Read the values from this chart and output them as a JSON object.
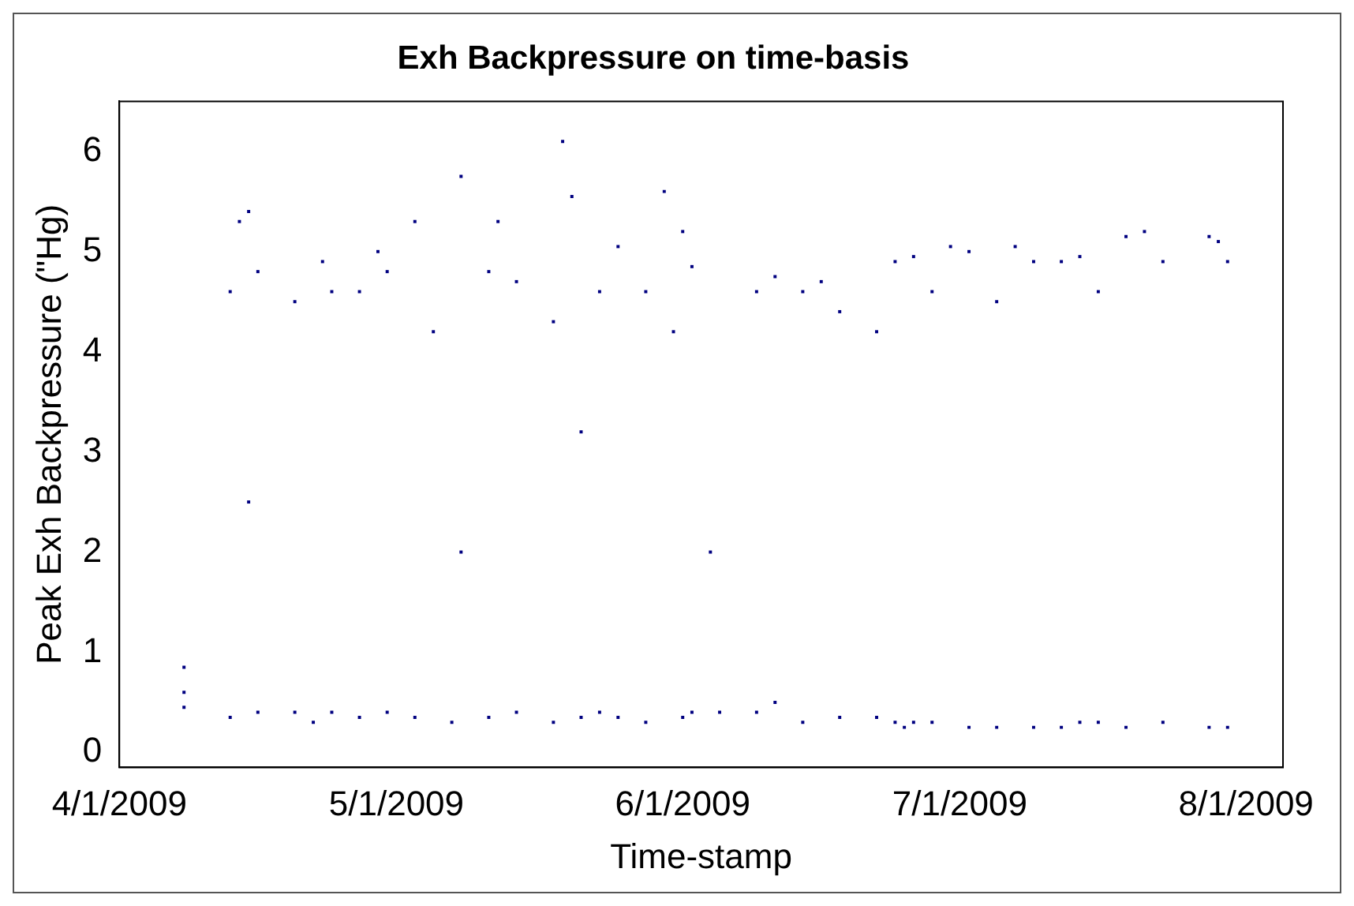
{
  "chart_data": {
    "type": "scatter",
    "title": "Exh Backpressure on time-basis",
    "xlabel": "Time-stamp",
    "ylabel": "Peak Exh Backpressure (\"Hg)",
    "marker": "square",
    "grid": false,
    "legend": false,
    "xlim": [
      "2009-04-01",
      "2009-08-05"
    ],
    "xticks": [
      {
        "value": "2009-04-01",
        "label": "4/1/2009"
      },
      {
        "value": "2009-05-01",
        "label": "5/1/2009"
      },
      {
        "value": "2009-06-01",
        "label": "6/1/2009"
      },
      {
        "value": "2009-07-01",
        "label": "7/1/2009"
      },
      {
        "value": "2009-08-01",
        "label": "8/1/2009"
      }
    ],
    "ylim": [
      -0.15,
      6.5
    ],
    "yticks": [
      0,
      1,
      2,
      3,
      4,
      5,
      6
    ],
    "series": [
      {
        "color": "#000080",
        "x": [
          "2009-04-08",
          "2009-04-08",
          "2009-04-08",
          "2009-04-13",
          "2009-04-13",
          "2009-04-14",
          "2009-04-15",
          "2009-04-15",
          "2009-04-16",
          "2009-04-16",
          "2009-04-20",
          "2009-04-20",
          "2009-04-22",
          "2009-04-23",
          "2009-04-24",
          "2009-04-24",
          "2009-04-27",
          "2009-04-27",
          "2009-04-29",
          "2009-04-30",
          "2009-04-30",
          "2009-05-03",
          "2009-05-03",
          "2009-05-05",
          "2009-05-07",
          "2009-05-08",
          "2009-05-08",
          "2009-05-11",
          "2009-05-11",
          "2009-05-12",
          "2009-05-14",
          "2009-05-14",
          "2009-05-18",
          "2009-05-18",
          "2009-05-19",
          "2009-05-20",
          "2009-05-21",
          "2009-05-21",
          "2009-05-23",
          "2009-05-23",
          "2009-05-25",
          "2009-05-25",
          "2009-05-28",
          "2009-05-28",
          "2009-05-30",
          "2009-05-31",
          "2009-06-01",
          "2009-06-01",
          "2009-06-02",
          "2009-06-02",
          "2009-06-04",
          "2009-06-05",
          "2009-06-09",
          "2009-06-09",
          "2009-06-11",
          "2009-06-11",
          "2009-06-14",
          "2009-06-14",
          "2009-06-16",
          "2009-06-18",
          "2009-06-18",
          "2009-06-22",
          "2009-06-22",
          "2009-06-24",
          "2009-06-24",
          "2009-06-25",
          "2009-06-26",
          "2009-06-26",
          "2009-06-28",
          "2009-06-28",
          "2009-06-30",
          "2009-07-02",
          "2009-07-02",
          "2009-07-05",
          "2009-07-05",
          "2009-07-07",
          "2009-07-09",
          "2009-07-09",
          "2009-07-12",
          "2009-07-12",
          "2009-07-14",
          "2009-07-14",
          "2009-07-16",
          "2009-07-16",
          "2009-07-19",
          "2009-07-19",
          "2009-07-21",
          "2009-07-23",
          "2009-07-23",
          "2009-07-28",
          "2009-07-28",
          "2009-07-29",
          "2009-07-30",
          "2009-07-30"
        ],
        "values": [
          0.6,
          0.85,
          0.45,
          0.35,
          4.6,
          5.3,
          5.4,
          2.5,
          0.4,
          4.8,
          0.4,
          4.5,
          0.3,
          4.9,
          0.4,
          4.6,
          0.35,
          4.6,
          5.0,
          0.4,
          4.8,
          0.35,
          5.3,
          4.2,
          0.3,
          5.75,
          2.0,
          0.35,
          4.8,
          5.3,
          0.4,
          4.7,
          0.3,
          4.3,
          6.1,
          5.55,
          0.35,
          3.2,
          0.4,
          4.6,
          0.35,
          5.05,
          0.3,
          4.6,
          5.6,
          4.2,
          0.35,
          5.2,
          0.4,
          4.85,
          2.0,
          0.4,
          0.4,
          4.6,
          0.5,
          4.75,
          0.3,
          4.6,
          4.7,
          0.35,
          4.4,
          0.35,
          4.2,
          0.3,
          4.9,
          0.25,
          0.3,
          4.95,
          0.3,
          4.6,
          5.05,
          0.25,
          5.0,
          0.25,
          4.5,
          5.05,
          0.25,
          4.9,
          0.25,
          4.9,
          0.3,
          4.95,
          0.3,
          4.6,
          0.25,
          5.15,
          5.2,
          0.3,
          4.9,
          0.25,
          5.15,
          5.1,
          0.25,
          4.9
        ]
      }
    ]
  }
}
